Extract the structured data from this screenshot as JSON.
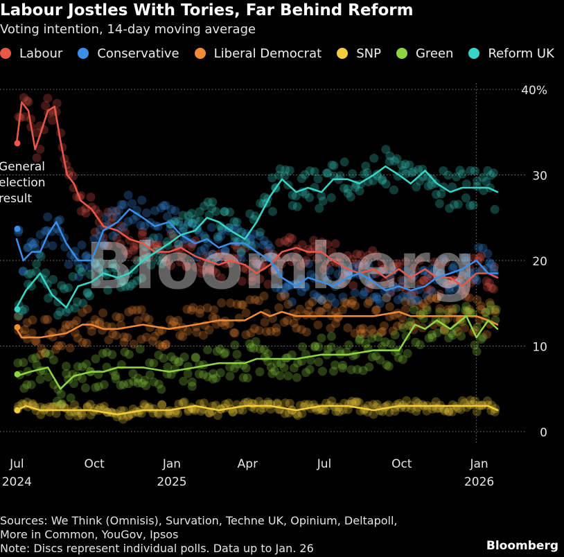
{
  "header": {
    "title": "Labour Jostles With Tories, Far Behind Reform",
    "subtitle": "Voting intention, 14-day moving average"
  },
  "footer": {
    "sources_line1": "Sources: We Think (Omnisis), Survation, Techne UK, Opinium, Deltapoll,",
    "sources_line2": "More in Common, YouGov, Ipsos",
    "note": "Note: Discs represent individual polls. Data up to Jan. 26",
    "brand": "Bloomberg"
  },
  "watermark": "Bloomberg",
  "chart_data": {
    "type": "line",
    "title": "Labour Jostles With Tories, Far Behind Reform",
    "subtitle": "Voting intention, 14-day moving average",
    "y_unit": "%",
    "ylim": [
      0,
      40
    ],
    "yticks": [
      0,
      10,
      20,
      30,
      40
    ],
    "ytick_labels": [
      "0",
      "10",
      "20",
      "30",
      "40%"
    ],
    "xlim": [
      "2024-07-04",
      "2026-01-26"
    ],
    "xticks": [
      {
        "date": "2024-07-01",
        "line1": "Jul",
        "line2": "2024"
      },
      {
        "date": "2024-10-01",
        "line1": "Oct",
        "line2": ""
      },
      {
        "date": "2025-01-01",
        "line1": "Jan",
        "line2": "2025"
      },
      {
        "date": "2025-04-01",
        "line1": "Apr",
        "line2": ""
      },
      {
        "date": "2025-07-01",
        "line1": "Jul",
        "line2": ""
      },
      {
        "date": "2025-10-01",
        "line1": "Oct",
        "line2": ""
      },
      {
        "date": "2026-01-01",
        "line1": "Jan",
        "line2": "2026"
      }
    ],
    "grid": "horizontal-dotted",
    "legend_position": "top-left",
    "annotation": {
      "lines": [
        "General",
        "election",
        "result"
      ],
      "date": "2024-07-04",
      "values": [
        33.7,
        23.7,
        12.2,
        2.5,
        6.7,
        14.3
      ]
    },
    "series": [
      {
        "name": "Labour",
        "color": "#e8574a",
        "points": [
          [
            "2024-07-04",
            33.7
          ],
          [
            "2024-07-10",
            38.5
          ],
          [
            "2024-07-18",
            37.5
          ],
          [
            "2024-07-26",
            33
          ],
          [
            "2024-08-02",
            35
          ],
          [
            "2024-08-10",
            37.5
          ],
          [
            "2024-08-18",
            38
          ],
          [
            "2024-08-25",
            34
          ],
          [
            "2024-09-02",
            30
          ],
          [
            "2024-09-10",
            29
          ],
          [
            "2024-09-18",
            27
          ],
          [
            "2024-10-01",
            26
          ],
          [
            "2024-10-15",
            24
          ],
          [
            "2024-11-01",
            23.5
          ],
          [
            "2024-11-15",
            22.5
          ],
          [
            "2024-12-01",
            22
          ],
          [
            "2024-12-15",
            21
          ],
          [
            "2025-01-01",
            21
          ],
          [
            "2025-01-15",
            21.5
          ],
          [
            "2025-02-01",
            20.5
          ],
          [
            "2025-02-15",
            20
          ],
          [
            "2025-03-01",
            19.5
          ],
          [
            "2025-03-15",
            20
          ],
          [
            "2025-04-01",
            19.5
          ],
          [
            "2025-04-15",
            18.5
          ],
          [
            "2025-05-01",
            19.5
          ],
          [
            "2025-05-15",
            21
          ],
          [
            "2025-06-01",
            21.5
          ],
          [
            "2025-06-15",
            21
          ],
          [
            "2025-07-01",
            21
          ],
          [
            "2025-07-15",
            20
          ],
          [
            "2025-08-01",
            19
          ],
          [
            "2025-08-15",
            18.5
          ],
          [
            "2025-09-01",
            19
          ],
          [
            "2025-09-15",
            18
          ],
          [
            "2025-10-01",
            19
          ],
          [
            "2025-10-15",
            18
          ],
          [
            "2025-11-01",
            19
          ],
          [
            "2025-11-15",
            18
          ],
          [
            "2025-12-01",
            18
          ],
          [
            "2025-12-15",
            17
          ],
          [
            "2026-01-01",
            18.5
          ],
          [
            "2026-01-15",
            18.5
          ],
          [
            "2026-01-26",
            18
          ]
        ]
      },
      {
        "name": "Conservative",
        "color": "#3b8ee8",
        "points": [
          [
            "2024-07-04",
            22.5
          ],
          [
            "2024-07-12",
            20
          ],
          [
            "2024-07-22",
            21
          ],
          [
            "2024-08-01",
            21
          ],
          [
            "2024-08-10",
            23
          ],
          [
            "2024-08-20",
            24.5
          ],
          [
            "2024-09-01",
            22
          ],
          [
            "2024-09-15",
            20
          ],
          [
            "2024-10-01",
            20
          ],
          [
            "2024-10-15",
            23.5
          ],
          [
            "2024-11-01",
            24.5
          ],
          [
            "2024-11-15",
            26
          ],
          [
            "2024-12-01",
            25
          ],
          [
            "2024-12-15",
            24
          ],
          [
            "2025-01-01",
            24.5
          ],
          [
            "2025-01-15",
            23
          ],
          [
            "2025-02-01",
            22
          ],
          [
            "2025-02-15",
            22.5
          ],
          [
            "2025-03-01",
            21.5
          ],
          [
            "2025-03-15",
            22
          ],
          [
            "2025-04-01",
            22
          ],
          [
            "2025-04-15",
            21
          ],
          [
            "2025-05-01",
            20
          ],
          [
            "2025-05-15",
            18
          ],
          [
            "2025-06-01",
            17
          ],
          [
            "2025-06-15",
            18
          ],
          [
            "2025-07-01",
            17.5
          ],
          [
            "2025-07-15",
            17
          ],
          [
            "2025-08-01",
            18
          ],
          [
            "2025-08-15",
            18.5
          ],
          [
            "2025-09-01",
            17.5
          ],
          [
            "2025-09-15",
            16.5
          ],
          [
            "2025-10-01",
            17
          ],
          [
            "2025-10-15",
            16.5
          ],
          [
            "2025-11-01",
            17
          ],
          [
            "2025-11-15",
            18
          ],
          [
            "2025-12-01",
            18.5
          ],
          [
            "2025-12-15",
            19
          ],
          [
            "2026-01-01",
            20
          ],
          [
            "2026-01-15",
            18.5
          ],
          [
            "2026-01-26",
            18.5
          ]
        ]
      },
      {
        "name": "Liberal Democrat",
        "color": "#f08a36",
        "points": [
          [
            "2024-07-04",
            12
          ],
          [
            "2024-07-10",
            11
          ],
          [
            "2024-08-01",
            11
          ],
          [
            "2024-09-01",
            11.5
          ],
          [
            "2024-09-20",
            12.5
          ],
          [
            "2024-10-01",
            12.5
          ],
          [
            "2024-10-15",
            12
          ],
          [
            "2024-11-01",
            12
          ],
          [
            "2024-12-01",
            12.5
          ],
          [
            "2025-01-01",
            12
          ],
          [
            "2025-02-01",
            12.5
          ],
          [
            "2025-03-01",
            13
          ],
          [
            "2025-04-01",
            13
          ],
          [
            "2025-04-20",
            14
          ],
          [
            "2025-05-01",
            13.5
          ],
          [
            "2025-05-15",
            14
          ],
          [
            "2025-06-01",
            13.5
          ],
          [
            "2025-07-01",
            13.5
          ],
          [
            "2025-08-01",
            13.5
          ],
          [
            "2025-09-01",
            13.5
          ],
          [
            "2025-10-01",
            14
          ],
          [
            "2025-10-15",
            13.5
          ],
          [
            "2025-11-01",
            13.5
          ],
          [
            "2025-12-01",
            13.5
          ],
          [
            "2026-01-01",
            13.5
          ],
          [
            "2026-01-15",
            13
          ],
          [
            "2026-01-26",
            12.5
          ]
        ]
      },
      {
        "name": "SNP",
        "color": "#f2cd3c",
        "points": [
          [
            "2024-07-04",
            2.5
          ],
          [
            "2024-07-15",
            3
          ],
          [
            "2024-08-01",
            2.5
          ],
          [
            "2024-09-01",
            2.5
          ],
          [
            "2024-10-01",
            2.5
          ],
          [
            "2024-11-01",
            2
          ],
          [
            "2024-12-01",
            2.5
          ],
          [
            "2025-01-01",
            2.5
          ],
          [
            "2025-02-01",
            3
          ],
          [
            "2025-03-01",
            2.5
          ],
          [
            "2025-04-01",
            3
          ],
          [
            "2025-05-01",
            3
          ],
          [
            "2025-06-01",
            2.5
          ],
          [
            "2025-07-01",
            3
          ],
          [
            "2025-08-01",
            3
          ],
          [
            "2025-09-01",
            2.5
          ],
          [
            "2025-10-01",
            3
          ],
          [
            "2025-11-01",
            3
          ],
          [
            "2025-12-01",
            3
          ],
          [
            "2026-01-01",
            3
          ],
          [
            "2026-01-15",
            3
          ],
          [
            "2026-01-26",
            2.5
          ]
        ]
      },
      {
        "name": "Green",
        "color": "#8fd442",
        "points": [
          [
            "2024-07-04",
            6.5
          ],
          [
            "2024-07-20",
            7
          ],
          [
            "2024-08-10",
            7.5
          ],
          [
            "2024-08-25",
            5
          ],
          [
            "2024-09-10",
            6.5
          ],
          [
            "2024-10-01",
            7
          ],
          [
            "2024-10-15",
            7
          ],
          [
            "2024-11-01",
            7.5
          ],
          [
            "2024-12-01",
            7.5
          ],
          [
            "2025-01-01",
            7
          ],
          [
            "2025-02-01",
            7.5
          ],
          [
            "2025-03-01",
            8
          ],
          [
            "2025-04-01",
            8
          ],
          [
            "2025-04-15",
            8.5
          ],
          [
            "2025-05-01",
            8.5
          ],
          [
            "2025-06-01",
            8.5
          ],
          [
            "2025-07-01",
            9
          ],
          [
            "2025-08-01",
            9
          ],
          [
            "2025-09-01",
            9.5
          ],
          [
            "2025-10-01",
            9.5
          ],
          [
            "2025-10-20",
            12.5
          ],
          [
            "2025-11-01",
            12
          ],
          [
            "2025-11-15",
            13
          ],
          [
            "2025-12-01",
            12
          ],
          [
            "2025-12-20",
            13.5
          ],
          [
            "2026-01-01",
            11
          ],
          [
            "2026-01-15",
            13
          ],
          [
            "2026-01-26",
            12
          ]
        ]
      },
      {
        "name": "Reform UK",
        "color": "#39d4c6",
        "points": [
          [
            "2024-07-04",
            14.5
          ],
          [
            "2024-07-15",
            16.5
          ],
          [
            "2024-08-01",
            18.5
          ],
          [
            "2024-08-15",
            16
          ],
          [
            "2024-09-01",
            14.5
          ],
          [
            "2024-09-15",
            17
          ],
          [
            "2024-10-01",
            17.5
          ],
          [
            "2024-10-15",
            18.5
          ],
          [
            "2024-11-01",
            18
          ],
          [
            "2024-11-15",
            18.5
          ],
          [
            "2024-12-01",
            20
          ],
          [
            "2025-01-01",
            22
          ],
          [
            "2025-01-15",
            23
          ],
          [
            "2025-02-01",
            23.5
          ],
          [
            "2025-02-15",
            25
          ],
          [
            "2025-03-01",
            24.5
          ],
          [
            "2025-03-15",
            23.5
          ],
          [
            "2025-04-01",
            22.5
          ],
          [
            "2025-04-15",
            24.5
          ],
          [
            "2025-05-01",
            27.5
          ],
          [
            "2025-05-15",
            29.5
          ],
          [
            "2025-06-01",
            28
          ],
          [
            "2025-06-15",
            28.5
          ],
          [
            "2025-07-01",
            28
          ],
          [
            "2025-07-15",
            29.5
          ],
          [
            "2025-08-01",
            29.5
          ],
          [
            "2025-08-15",
            29
          ],
          [
            "2025-09-01",
            30
          ],
          [
            "2025-09-15",
            31
          ],
          [
            "2025-10-01",
            30
          ],
          [
            "2025-10-15",
            29
          ],
          [
            "2025-11-01",
            30.5
          ],
          [
            "2025-11-15",
            29
          ],
          [
            "2025-12-01",
            28
          ],
          [
            "2025-12-15",
            28.5
          ],
          [
            "2026-01-01",
            28.5
          ],
          [
            "2026-01-15",
            28.5
          ],
          [
            "2026-01-26",
            28
          ]
        ]
      }
    ]
  }
}
